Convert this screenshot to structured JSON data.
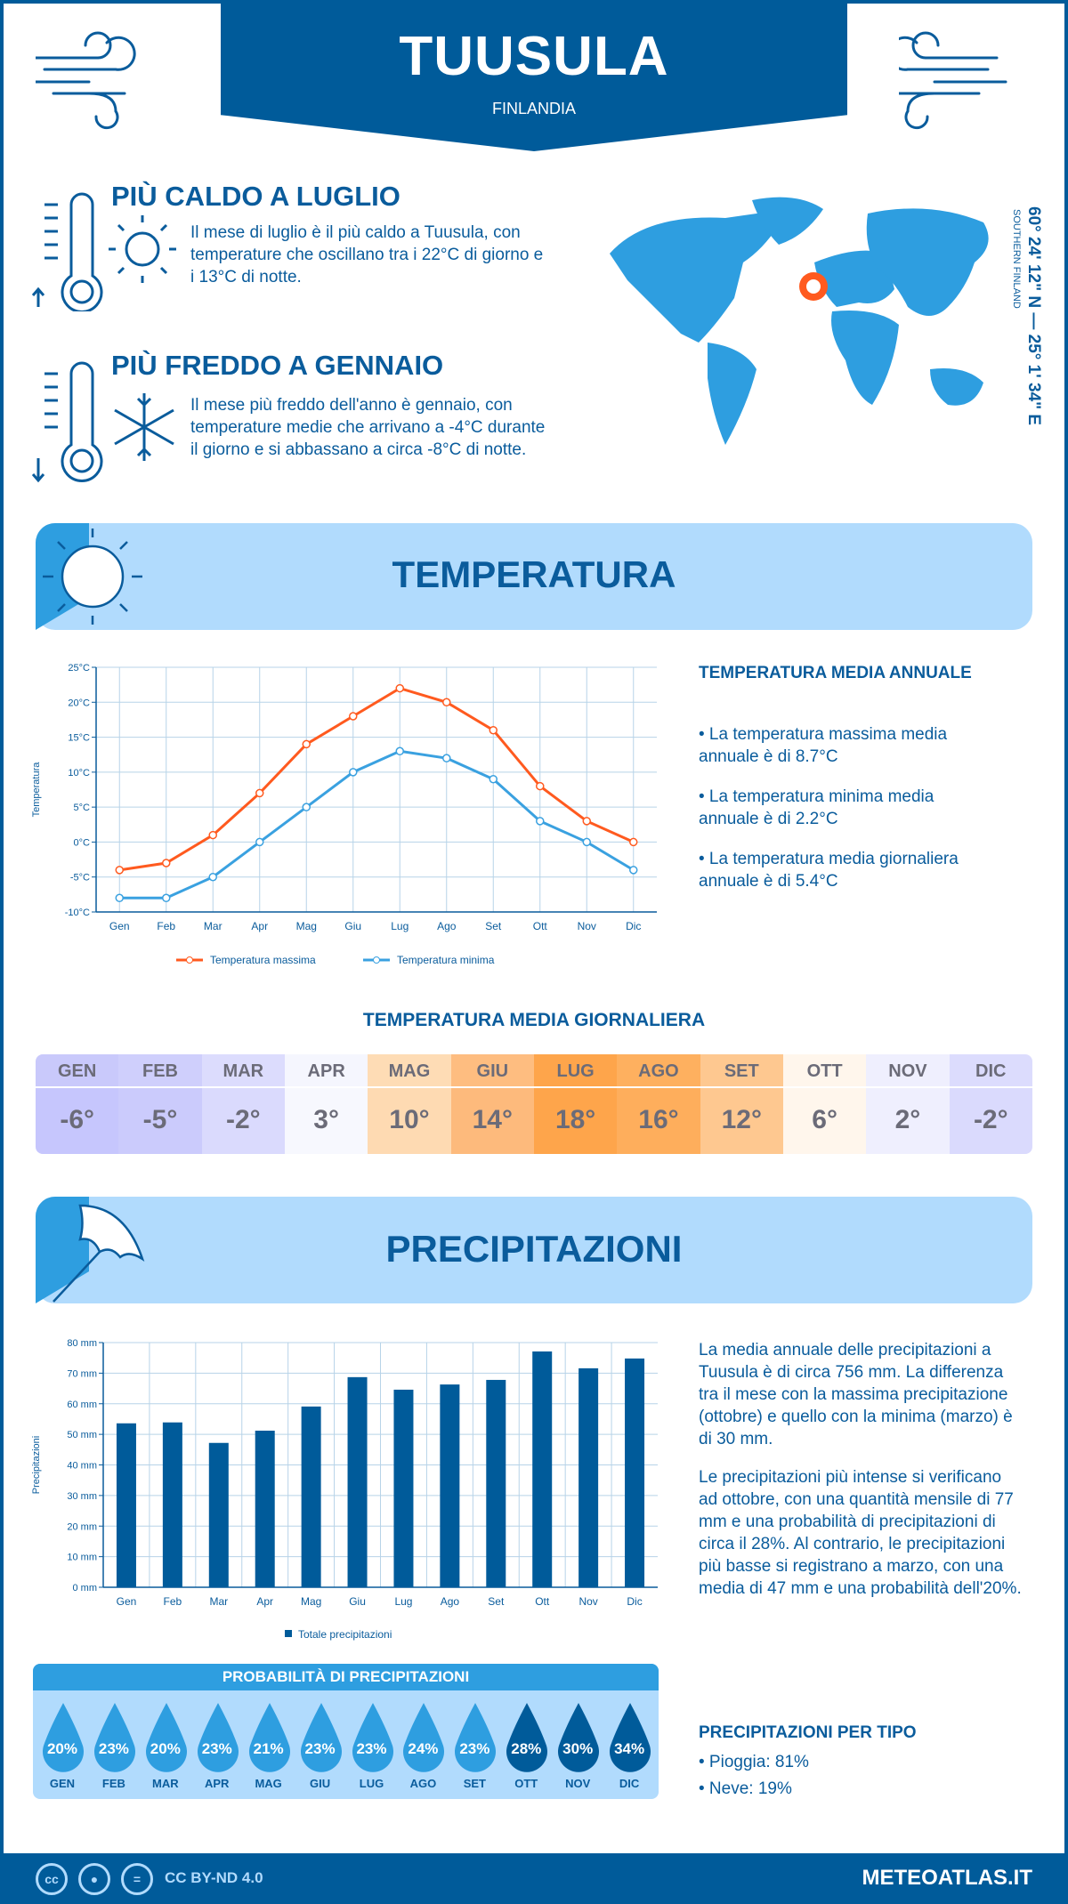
{
  "header": {
    "city": "TUUSULA",
    "country": "FINLANDIA"
  },
  "coords": {
    "text": "60° 24' 12\" N — 25° 1' 34\" E",
    "region": "SOUTHERN FINLAND"
  },
  "hottest": {
    "title": "PIÙ CALDO A LUGLIO",
    "text": "Il mese di luglio è il più caldo a Tuusula, con temperature che oscillano tra i 22°C di giorno e i 13°C di notte."
  },
  "coldest": {
    "title": "PIÙ FREDDO A GENNAIO",
    "text": "Il mese più freddo dell'anno è gennaio, con temperature medie che arrivano a -4°C durante il giorno e si abbassano a circa -8°C di notte."
  },
  "temperature_section": {
    "title": "TEMPERATURA",
    "annual_heading": "TEMPERATURA MEDIA ANNUALE",
    "bullets": [
      "• La temperatura massima media annuale è di 8.7°C",
      "• La temperatura minima media annuale è di 2.2°C",
      "• La temperatura media giornaliera annuale è di 5.4°C"
    ],
    "daily_heading": "TEMPERATURA MEDIA GIORNALIERA",
    "daily": [
      {
        "m": "GEN",
        "v": "-6°",
        "hbg": "#c9c9fb",
        "vbg": "#c6c6fd"
      },
      {
        "m": "FEB",
        "v": "-5°",
        "hbg": "#cfcffc",
        "vbg": "#cbcbfc"
      },
      {
        "m": "MAR",
        "v": "-2°",
        "hbg": "#dcdcfd",
        "vbg": "#dadafd"
      },
      {
        "m": "APR",
        "v": "3°",
        "hbg": "#f5f6fe",
        "vbg": "#f7f8fe"
      },
      {
        "m": "MAG",
        "v": "10°",
        "hbg": "#fedcb5",
        "vbg": "#fedab2"
      },
      {
        "m": "GIU",
        "v": "14°",
        "hbg": "#febd80",
        "vbg": "#fdba7c"
      },
      {
        "m": "LUG",
        "v": "18°",
        "hbg": "#fea54b",
        "vbg": "#fea54b"
      },
      {
        "m": "AGO",
        "v": "16°",
        "hbg": "#feb05f",
        "vbg": "#feae5c"
      },
      {
        "m": "SET",
        "v": "12°",
        "hbg": "#fec890",
        "vbg": "#fec890"
      },
      {
        "m": "OTT",
        "v": "6°",
        "hbg": "#fff6ec",
        "vbg": "#fff6ec"
      },
      {
        "m": "NOV",
        "v": "2°",
        "hbg": "#efeffe",
        "vbg": "#efeffe"
      },
      {
        "m": "DIC",
        "v": "-2°",
        "hbg": "#dcdcfd",
        "vbg": "#dadafd"
      }
    ]
  },
  "precip_section": {
    "title": "PRECIPITAZIONI",
    "paragraphs": [
      "La media annuale delle precipitazioni a Tuusula è di circa 756 mm. La differenza tra il mese con la massima precipitazione (ottobre) e quello con la minima (marzo) è di 30 mm.",
      "Le precipitazioni più intense si verificano ad ottobre, con una quantità mensile di 77 mm e una probabilità di precipitazioni di circa il 28%. Al contrario, le precipitazioni più basse si registrano a marzo, con una media di 47 mm e una probabilità dell'20%."
    ],
    "prob_heading": "PROBABILITÀ DI PRECIPITAZIONI",
    "prob": [
      {
        "m": "GEN",
        "v": "20%",
        "dark": false
      },
      {
        "m": "FEB",
        "v": "23%",
        "dark": false
      },
      {
        "m": "MAR",
        "v": "20%",
        "dark": false
      },
      {
        "m": "APR",
        "v": "23%",
        "dark": false
      },
      {
        "m": "MAG",
        "v": "21%",
        "dark": false
      },
      {
        "m": "GIU",
        "v": "23%",
        "dark": false
      },
      {
        "m": "LUG",
        "v": "23%",
        "dark": false
      },
      {
        "m": "AGO",
        "v": "24%",
        "dark": false
      },
      {
        "m": "SET",
        "v": "23%",
        "dark": false
      },
      {
        "m": "OTT",
        "v": "28%",
        "dark": true
      },
      {
        "m": "NOV",
        "v": "30%",
        "dark": true
      },
      {
        "m": "DIC",
        "v": "34%",
        "dark": true
      }
    ],
    "type_heading": "PRECIPITAZIONI PER TIPO",
    "types": [
      "• Pioggia: 81%",
      "• Neve: 19%"
    ]
  },
  "footer": {
    "license": "CC BY-ND 4.0",
    "site": "METEOATLAS.IT",
    "cc": "cc",
    "eq": "="
  },
  "colors": {
    "primary": "#005b9a",
    "accent": "#2e9ee0",
    "light": "#b1dbfd",
    "max": "#ff5a1f",
    "min": "#3aa1e0"
  },
  "chart_data": [
    {
      "type": "line",
      "categories": [
        "Gen",
        "Feb",
        "Mar",
        "Apr",
        "Mag",
        "Giu",
        "Lug",
        "Ago",
        "Set",
        "Ott",
        "Nov",
        "Dic"
      ],
      "ylabel": "Temperatura",
      "ylim": [
        -10,
        25
      ],
      "yticks": [
        "-10°C",
        "-5°C",
        "0°C",
        "5°C",
        "10°C",
        "15°C",
        "20°C",
        "25°C"
      ],
      "grid": true,
      "legend": "bottom",
      "series": [
        {
          "name": "Temperatura massima",
          "values": [
            -4,
            -3,
            1,
            7,
            14,
            18,
            22,
            20,
            16,
            8,
            3,
            0
          ],
          "color": "#ff5a1f"
        },
        {
          "name": "Temperatura minima",
          "values": [
            -8,
            -8,
            -5,
            0,
            5,
            10,
            13,
            12,
            9,
            3,
            0,
            -4
          ],
          "color": "#3aa1e0"
        }
      ]
    },
    {
      "type": "bar",
      "categories": [
        "Gen",
        "Feb",
        "Mar",
        "Apr",
        "Mag",
        "Giu",
        "Lug",
        "Ago",
        "Set",
        "Ott",
        "Nov",
        "Dic"
      ],
      "ylabel": "Precipitazioni",
      "ylim": [
        0,
        80
      ],
      "yticks": [
        "0 mm",
        "10 mm",
        "20 mm",
        "30 mm",
        "40 mm",
        "50 mm",
        "60 mm",
        "70 mm",
        "80 mm"
      ],
      "grid": true,
      "legend": "bottom",
      "series": [
        {
          "name": "Totale precipitazioni",
          "values": [
            53.6,
            53.9,
            47.2,
            51.2,
            59.1,
            68.7,
            64.6,
            66.3,
            67.8,
            77.1,
            71.6,
            74.8
          ],
          "color": "#005b9a"
        }
      ]
    }
  ]
}
